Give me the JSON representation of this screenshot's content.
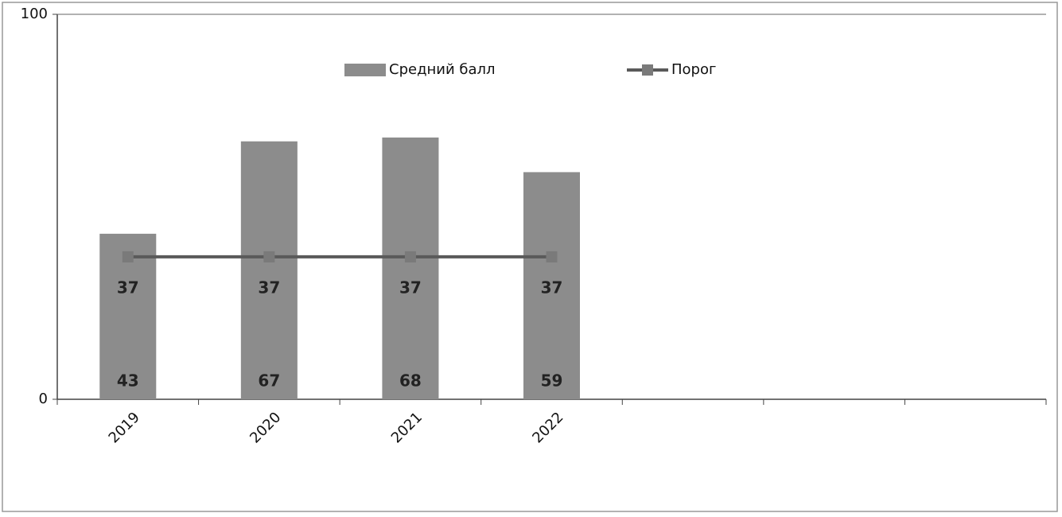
{
  "chart_data": {
    "type": "bar",
    "categories": [
      "2019",
      "2020",
      "2021",
      "2022",
      null,
      null,
      null
    ],
    "series": [
      {
        "name": "Средний балл",
        "type": "bar",
        "color": "#8c8c8c",
        "values": [
          43,
          67,
          68,
          59,
          null,
          null,
          null
        ]
      },
      {
        "name": "Порог",
        "type": "line",
        "color": "#5a5a5a",
        "values": [
          37,
          37,
          37,
          37,
          null,
          null,
          null
        ]
      }
    ],
    "ylim": [
      0,
      100
    ],
    "yticks": [
      0,
      100
    ],
    "legend": "top",
    "data_labels": true
  }
}
